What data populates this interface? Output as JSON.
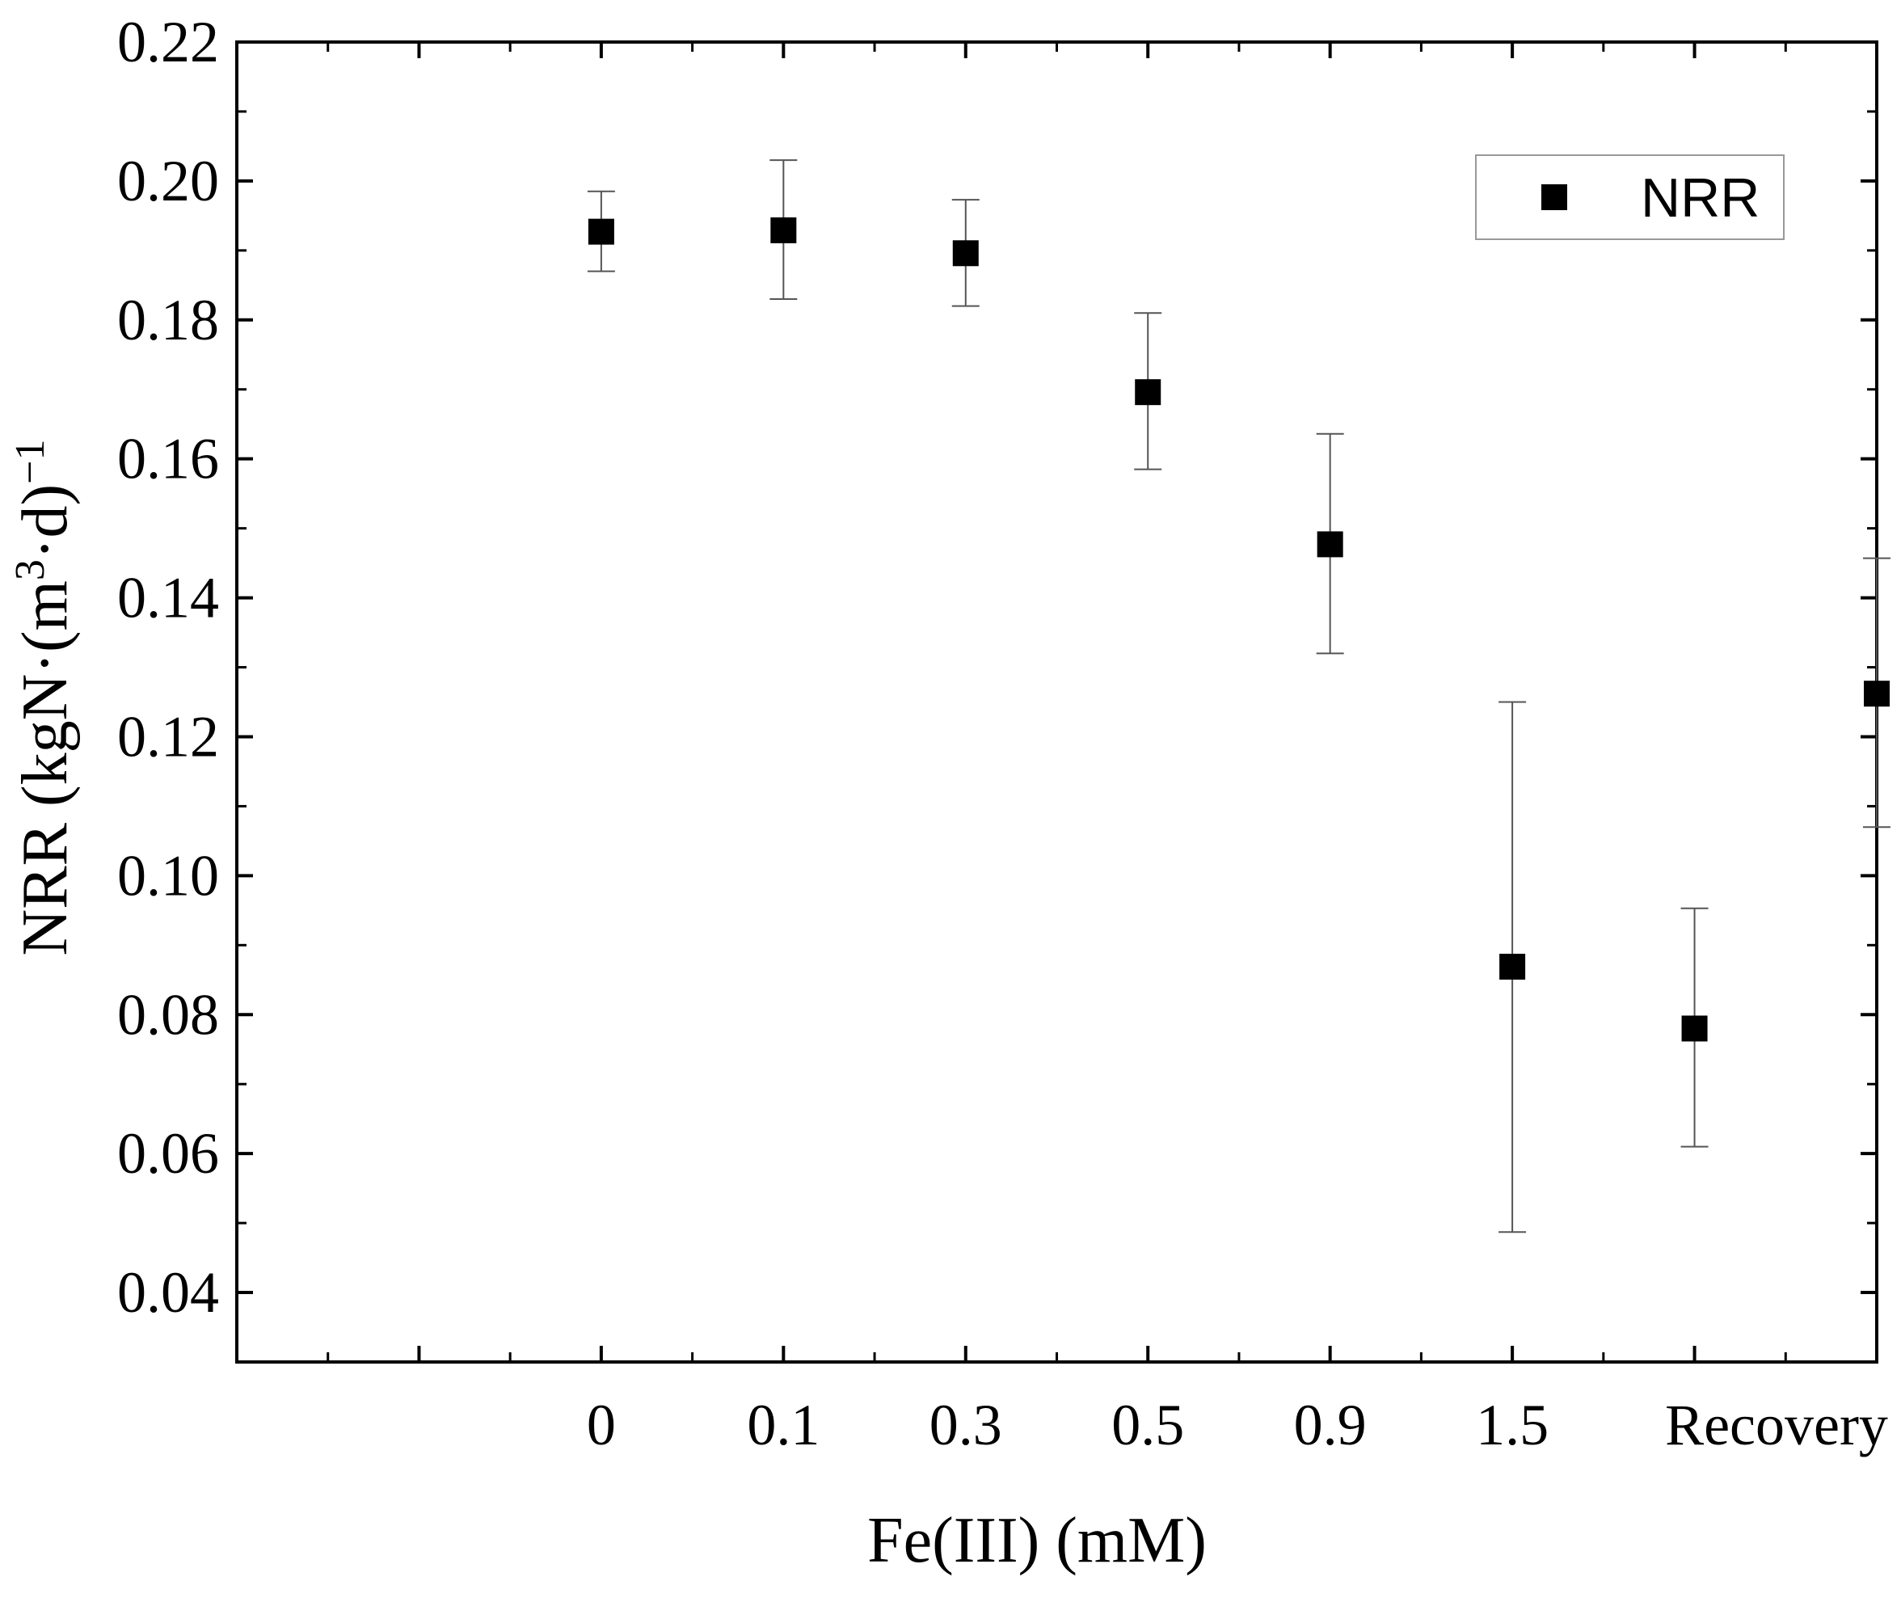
{
  "chart_data": {
    "type": "scatter",
    "title": "",
    "xlabel": "Fe(III) (mM)",
    "ylabel": "NRR (kgN·(m³·d)⁻¹",
    "ylabel_parts": {
      "prefix": "NRR (kgN·(m",
      "sup1": "3",
      "mid": "·d)",
      "sup2": "−1"
    },
    "x_tick_labels": [
      "0",
      "0.1",
      "0.3",
      "0.5",
      "0.9",
      "1.5",
      "Recovery"
    ],
    "y_tick_labels": [
      "0.04",
      "0.06",
      "0.08",
      "0.10",
      "0.12",
      "0.14",
      "0.16",
      "0.18",
      "0.20",
      "0.22"
    ],
    "xlim": [
      -1,
      8
    ],
    "ylim": [
      0.03,
      0.22
    ],
    "major_x_positions": [
      0,
      1,
      2,
      3,
      4,
      5,
      6,
      7,
      8
    ],
    "series": [
      {
        "name": "NRR",
        "x": [
          1,
          2,
          3,
          4,
          5,
          6,
          7,
          8
        ],
        "values": [
          0.1927,
          0.1929,
          0.1896,
          0.1696,
          0.1477,
          0.0869,
          0.078,
          0.1262
        ],
        "error_lower": [
          0.187,
          0.183,
          0.182,
          0.1585,
          0.132,
          0.0487,
          0.061,
          0.107
        ],
        "error_upper": [
          0.1985,
          0.203,
          0.1973,
          0.181,
          0.1636,
          0.125,
          0.0953,
          0.1457
        ]
      }
    ],
    "legend": {
      "entries": [
        "NRR"
      ],
      "placement": "top-right"
    },
    "colors": {
      "marker": "#000000",
      "error_bar": "#555555",
      "axis": "#000000"
    }
  }
}
